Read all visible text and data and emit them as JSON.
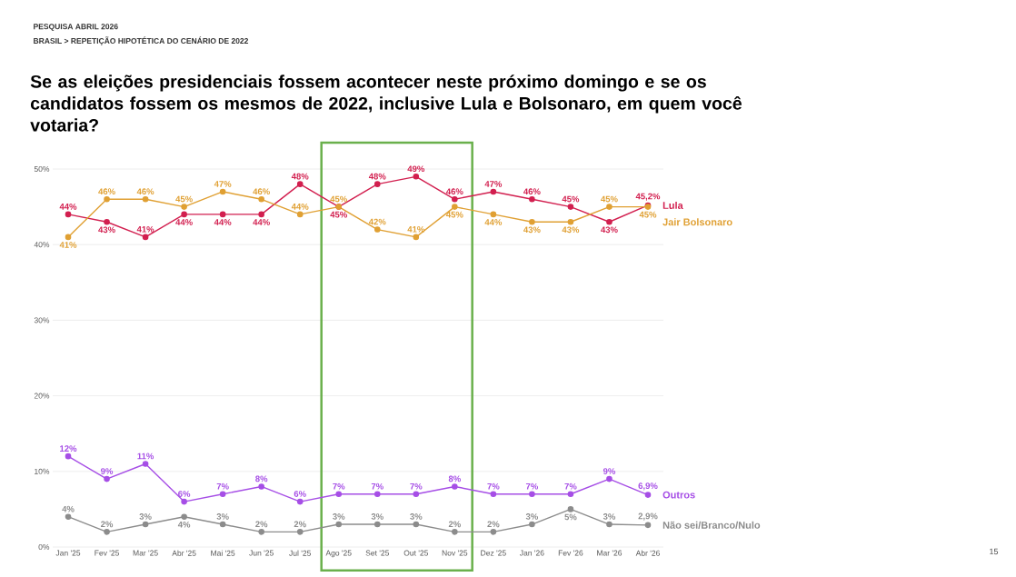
{
  "chart_data": {
    "type": "line",
    "title": "Se as eleições presidenciais fossem acontecer neste próximo domingo e se os candidatos fossem os mesmos de 2022, inclusive Lula e Bolsonaro, em quem você votaria?",
    "subtitle": "BRASIL > REPETIÇÃO HIPOTÉTICA DO CENÁRIO DE 2022",
    "annotations": [
      "PESQUISA ABRIL 2026",
      "15"
    ],
    "categories": [
      "Jan '25",
      "Fev '25",
      "Mar '25",
      "Abr '25",
      "Mai '25",
      "Jun '25",
      "Jul '25",
      "Ago '25",
      "Set '25",
      "Out '25",
      "Nov '25",
      "Dez '25",
      "Jan '26",
      "Fev '26",
      "Mar '26",
      "Abr '26"
    ],
    "series": [
      {
        "name": "Lula",
        "color": "#d21f4f",
        "values": [
          44,
          43,
          41,
          44,
          44,
          44,
          48,
          45,
          48,
          49,
          46,
          47,
          46,
          45,
          43,
          45.2
        ],
        "value_labels": [
          "44%",
          "43%",
          "41%",
          "44%",
          "44%",
          "44%",
          "48%",
          "45%",
          "48%",
          "49%",
          "46%",
          "47%",
          "46%",
          "45%",
          "43%",
          "45,2%"
        ]
      },
      {
        "name": "Jair Bolsonaro",
        "color": "#e0a033",
        "values": [
          41,
          46,
          46,
          45,
          47,
          46,
          44,
          45,
          42,
          41,
          45,
          44,
          43,
          43,
          45,
          45
        ],
        "value_labels": [
          "41%",
          "46%",
          "46%",
          "45%",
          "47%",
          "46%",
          "44%",
          "45%",
          "42%",
          "41%",
          "45%",
          "44%",
          "43%",
          "43%",
          "45%",
          "45%"
        ]
      },
      {
        "name": "Outros",
        "color": "#a64ee6",
        "values": [
          12,
          9,
          11,
          6,
          7,
          8,
          6,
          7,
          7,
          7,
          8,
          7,
          7,
          7,
          9,
          6.9
        ],
        "value_labels": [
          "12%",
          "9%",
          "11%",
          "6%",
          "7%",
          "8%",
          "6%",
          "7%",
          "7%",
          "7%",
          "8%",
          "7%",
          "7%",
          "7%",
          "9%",
          "6,9%"
        ]
      },
      {
        "name": "Não sei/Branco/Nulo",
        "color": "#8c8c8c",
        "values": [
          4,
          2,
          3,
          4,
          3,
          2,
          2,
          3,
          3,
          3,
          2,
          2,
          3,
          5,
          3,
          2.9
        ],
        "value_labels": [
          "4%",
          "2%",
          "3%",
          "4%",
          "3%",
          "2%",
          "2%",
          "3%",
          "3%",
          "3%",
          "2%",
          "2%",
          "3%",
          "5%",
          "3%",
          "2,9%"
        ]
      }
    ],
    "ylim": [
      0,
      50
    ],
    "yticks": [
      {
        "value": 0,
        "label": "0%"
      },
      {
        "value": 10,
        "label": "10%"
      },
      {
        "value": 20,
        "label": "20%"
      },
      {
        "value": 30,
        "label": "30%"
      },
      {
        "value": 40,
        "label": "40%"
      },
      {
        "value": 50,
        "label": "50%"
      }
    ],
    "grid": "y",
    "marker": "circle"
  }
}
